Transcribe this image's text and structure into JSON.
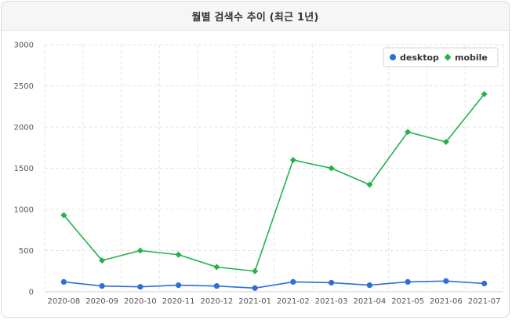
{
  "title": "월별 검색수 추이 (최근 1년)",
  "chart_data": {
    "type": "line",
    "categories": [
      "2020-08",
      "2020-09",
      "2020-10",
      "2020-11",
      "2020-12",
      "2021-01",
      "2021-02",
      "2021-03",
      "2021-04",
      "2021-05",
      "2021-06",
      "2021-07"
    ],
    "series": [
      {
        "name": "desktop",
        "color": "#2e6fd6",
        "marker": "circle",
        "values": [
          120,
          70,
          60,
          80,
          70,
          45,
          120,
          110,
          80,
          120,
          130,
          100
        ]
      },
      {
        "name": "mobile",
        "color": "#22b24c",
        "marker": "diamond",
        "values": [
          930,
          380,
          500,
          450,
          300,
          250,
          1600,
          1500,
          1300,
          1940,
          1820,
          2400
        ]
      }
    ],
    "ylim": [
      0,
      3000
    ],
    "yticks": [
      0,
      500,
      1000,
      1500,
      2000,
      2500,
      3000
    ],
    "grid": true,
    "legend": "top-right"
  }
}
